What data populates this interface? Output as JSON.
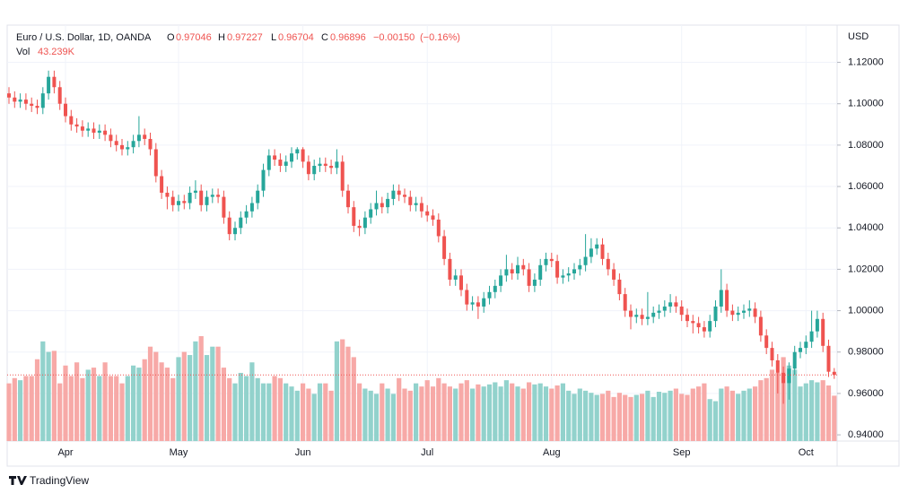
{
  "chart_data": {
    "type": "candlestick",
    "title": "Euro / U.S. Dollar, 1D, OANDA",
    "ohlc": [
      {
        "key": "O",
        "value": 0.97046
      },
      {
        "key": "H",
        "value": 0.97227
      },
      {
        "key": "L",
        "value": 0.96704
      },
      {
        "key": "C",
        "value": 0.96896
      }
    ],
    "change": {
      "value": -0.0015,
      "label": "−0.00150"
    },
    "change_pct": {
      "value": -0.16,
      "label": "(−0.16%)"
    },
    "currency": "USD",
    "brand": "TradingView",
    "up_color": "#26a69a",
    "down_color": "#ef5350",
    "volume_up_color": "#92d2cc",
    "volume_down_color": "#f7a9a7",
    "grid": true,
    "ylim": [
      0.937,
      1.138
    ],
    "yticks": [
      {
        "value": 0.94,
        "label": "0.94000"
      },
      {
        "value": 0.96,
        "label": "0.96000"
      },
      {
        "value": 0.98,
        "label": "0.98000"
      },
      {
        "value": 1.0,
        "label": "1.00000"
      },
      {
        "value": 1.02,
        "label": "1.02000"
      },
      {
        "value": 1.04,
        "label": "1.04000"
      },
      {
        "value": 1.06,
        "label": "1.06000"
      },
      {
        "value": 1.08,
        "label": "1.08000"
      },
      {
        "value": 1.1,
        "label": "1.10000"
      },
      {
        "value": 1.12,
        "label": "1.12000"
      }
    ],
    "categories": [
      null,
      null,
      null,
      null,
      null,
      null,
      null,
      null,
      null,
      null,
      "Apr",
      null,
      null,
      null,
      null,
      null,
      null,
      null,
      null,
      null,
      null,
      null,
      null,
      null,
      null,
      null,
      null,
      null,
      null,
      null,
      "May",
      null,
      null,
      null,
      null,
      null,
      null,
      null,
      null,
      null,
      null,
      null,
      null,
      null,
      null,
      null,
      null,
      null,
      null,
      null,
      null,
      null,
      "Jun",
      null,
      null,
      null,
      null,
      null,
      null,
      null,
      null,
      null,
      null,
      null,
      null,
      null,
      null,
      null,
      null,
      null,
      null,
      null,
      null,
      null,
      "Jul",
      null,
      null,
      null,
      null,
      null,
      null,
      null,
      null,
      null,
      null,
      null,
      null,
      null,
      null,
      null,
      null,
      null,
      null,
      null,
      null,
      null,
      "Aug",
      null,
      null,
      null,
      null,
      null,
      null,
      null,
      null,
      null,
      null,
      null,
      null,
      null,
      null,
      null,
      null,
      null,
      null,
      null,
      null,
      null,
      null,
      "Sep",
      null,
      null,
      null,
      null,
      null,
      null,
      null,
      null,
      null,
      null,
      null,
      null,
      null,
      null,
      null,
      null,
      null,
      null,
      null,
      null,
      null,
      "Oct",
      null,
      null,
      null,
      null,
      null
    ],
    "open": [
      1.105,
      1.103,
      1.101,
      1.102,
      1.1,
      1.099,
      1.098,
      1.105,
      1.113,
      1.108,
      1.1,
      1.094,
      1.09,
      1.089,
      1.087,
      1.088,
      1.086,
      1.087,
      1.085,
      1.082,
      1.08,
      1.078,
      1.079,
      1.082,
      1.085,
      1.083,
      1.078,
      1.065,
      1.057,
      1.055,
      1.051,
      1.053,
      1.052,
      1.057,
      1.058,
      1.051,
      1.055,
      1.056,
      1.055,
      1.045,
      1.037,
      1.04,
      1.045,
      1.048,
      1.052,
      1.058,
      1.068,
      1.075,
      1.073,
      1.07,
      1.072,
      1.076,
      1.078,
      1.072,
      1.066,
      1.07,
      1.071,
      1.07,
      1.069,
      1.072,
      1.058,
      1.05,
      1.041,
      1.04,
      1.045,
      1.049,
      1.052,
      1.05,
      1.054,
      1.058,
      1.056,
      1.055,
      1.051,
      1.052,
      1.048,
      1.046,
      1.044,
      1.036,
      1.025,
      1.015,
      1.017,
      1.01,
      1.003,
      1.004,
      1.002,
      1.006,
      1.009,
      1.012,
      1.017,
      1.02,
      1.018,
      1.022,
      1.02,
      1.012,
      1.015,
      1.022,
      1.025,
      1.024,
      1.016,
      1.017,
      1.018,
      1.02,
      1.022,
      1.026,
      1.03,
      1.032,
      1.025,
      1.02,
      1.015,
      1.008,
      1.0,
      0.997,
      0.998,
      0.996,
      0.997,
      0.999,
      1.0,
      1.002,
      1.004,
      1.002,
      0.998,
      0.995,
      0.994,
      0.992,
      0.99,
      0.995,
      1.002,
      1.01,
      1.0,
      0.998,
      0.999,
      1.0,
      1.001,
      0.997,
      0.988,
      0.982,
      0.976,
      0.97,
      0.965,
      0.972,
      0.98,
      0.982,
      0.985,
      0.99,
      0.996,
      0.983,
      0.97046
    ],
    "high": [
      1.108,
      1.106,
      1.105,
      1.105,
      1.103,
      1.102,
      1.108,
      1.116,
      1.116,
      1.111,
      1.103,
      1.097,
      1.093,
      1.092,
      1.091,
      1.091,
      1.09,
      1.09,
      1.088,
      1.085,
      1.083,
      1.082,
      1.085,
      1.094,
      1.088,
      1.086,
      1.081,
      1.068,
      1.06,
      1.058,
      1.056,
      1.056,
      1.06,
      1.063,
      1.061,
      1.058,
      1.059,
      1.059,
      1.058,
      1.048,
      1.043,
      1.048,
      1.051,
      1.055,
      1.061,
      1.071,
      1.078,
      1.078,
      1.076,
      1.075,
      1.079,
      1.079,
      1.079,
      1.075,
      1.073,
      1.074,
      1.074,
      1.073,
      1.078,
      1.075,
      1.061,
      1.053,
      1.044,
      1.048,
      1.052,
      1.058,
      1.055,
      1.057,
      1.061,
      1.061,
      1.059,
      1.058,
      1.055,
      1.055,
      1.051,
      1.049,
      1.047,
      1.039,
      1.028,
      1.02,
      1.02,
      1.013,
      1.007,
      1.007,
      1.009,
      1.012,
      1.015,
      1.02,
      1.027,
      1.023,
      1.026,
      1.025,
      1.023,
      1.018,
      1.025,
      1.028,
      1.028,
      1.027,
      1.02,
      1.021,
      1.023,
      1.025,
      1.037,
      1.035,
      1.035,
      1.035,
      1.028,
      1.023,
      1.018,
      1.011,
      1.003,
      1.001,
      1.001,
      1.009,
      1.002,
      1.003,
      1.005,
      1.008,
      1.007,
      1.005,
      1.001,
      0.998,
      0.997,
      0.995,
      0.998,
      1.005,
      1.02,
      1.013,
      1.003,
      1.002,
      1.003,
      1.005,
      1.004,
      1.0,
      0.991,
      0.985,
      0.979,
      0.973,
      0.975,
      0.983,
      0.985,
      0.988,
      1.0,
      1.0,
      0.999,
      0.986,
      0.97227
    ],
    "low": [
      1.1,
      1.098,
      1.098,
      1.097,
      1.096,
      1.095,
      1.095,
      1.102,
      1.105,
      1.097,
      1.091,
      1.087,
      1.086,
      1.084,
      1.084,
      1.083,
      1.083,
      1.082,
      1.079,
      1.077,
      1.075,
      1.075,
      1.076,
      1.079,
      1.08,
      1.075,
      1.062,
      1.054,
      1.049,
      1.048,
      1.048,
      1.049,
      1.049,
      1.054,
      1.048,
      1.048,
      1.052,
      1.052,
      1.042,
      1.034,
      1.034,
      1.037,
      1.042,
      1.045,
      1.049,
      1.055,
      1.065,
      1.07,
      1.067,
      1.067,
      1.069,
      1.073,
      1.069,
      1.063,
      1.063,
      1.067,
      1.067,
      1.066,
      1.066,
      1.055,
      1.047,
      1.038,
      1.036,
      1.037,
      1.042,
      1.046,
      1.047,
      1.047,
      1.051,
      1.053,
      1.052,
      1.048,
      1.048,
      1.045,
      1.043,
      1.041,
      1.033,
      1.022,
      1.012,
      1.012,
      1.007,
      1.0,
      1.0,
      0.996,
      0.999,
      1.003,
      1.006,
      1.009,
      1.014,
      1.015,
      1.015,
      1.017,
      1.009,
      1.009,
      1.012,
      1.019,
      1.021,
      1.013,
      1.013,
      1.014,
      1.015,
      1.017,
      1.019,
      1.023,
      1.027,
      1.022,
      1.017,
      1.012,
      1.005,
      0.997,
      0.991,
      0.994,
      0.993,
      0.993,
      0.994,
      0.996,
      0.997,
      0.999,
      0.999,
      0.995,
      0.992,
      0.989,
      0.989,
      0.987,
      0.987,
      0.992,
      0.999,
      0.997,
      0.995,
      0.995,
      0.996,
      0.997,
      0.994,
      0.985,
      0.979,
      0.973,
      0.96,
      0.955,
      0.957,
      0.969,
      0.977,
      0.979,
      0.982,
      0.987,
      0.98,
      0.968,
      0.96704
    ],
    "close": [
      1.103,
      1.101,
      1.102,
      1.1,
      1.099,
      1.098,
      1.105,
      1.113,
      1.108,
      1.1,
      1.094,
      1.09,
      1.089,
      1.087,
      1.088,
      1.086,
      1.087,
      1.085,
      1.082,
      1.08,
      1.078,
      1.079,
      1.082,
      1.085,
      1.083,
      1.078,
      1.065,
      1.057,
      1.055,
      1.051,
      1.053,
      1.052,
      1.057,
      1.058,
      1.051,
      1.055,
      1.056,
      1.055,
      1.045,
      1.037,
      1.04,
      1.045,
      1.048,
      1.052,
      1.058,
      1.068,
      1.075,
      1.073,
      1.07,
      1.072,
      1.076,
      1.078,
      1.072,
      1.066,
      1.07,
      1.071,
      1.07,
      1.069,
      1.072,
      1.058,
      1.05,
      1.041,
      1.04,
      1.045,
      1.049,
      1.052,
      1.05,
      1.054,
      1.058,
      1.056,
      1.055,
      1.051,
      1.052,
      1.048,
      1.046,
      1.044,
      1.036,
      1.025,
      1.015,
      1.017,
      1.01,
      1.003,
      1.004,
      1.002,
      1.006,
      1.009,
      1.012,
      1.017,
      1.02,
      1.018,
      1.022,
      1.02,
      1.012,
      1.015,
      1.022,
      1.025,
      1.024,
      1.016,
      1.017,
      1.018,
      1.02,
      1.022,
      1.026,
      1.03,
      1.032,
      1.025,
      1.02,
      1.015,
      1.008,
      1.0,
      0.997,
      0.998,
      0.996,
      0.997,
      0.999,
      1.0,
      1.002,
      1.004,
      1.002,
      0.998,
      0.995,
      0.994,
      0.992,
      0.99,
      0.995,
      1.002,
      1.01,
      1.0,
      0.998,
      0.999,
      1.0,
      1.001,
      0.997,
      0.988,
      0.982,
      0.976,
      0.97,
      0.965,
      0.972,
      0.98,
      0.982,
      0.985,
      0.99,
      0.996,
      0.983,
      0.9705,
      0.96896
    ],
    "volume": {
      "label": "Vol",
      "ylim": [
        0,
        100
      ],
      "values": [
        55,
        60,
        58,
        62,
        62,
        78,
        95,
        85,
        86,
        55,
        72,
        62,
        75,
        60,
        68,
        70,
        62,
        75,
        62,
        62,
        55,
        62,
        72,
        70,
        78,
        90,
        85,
        75,
        70,
        60,
        80,
        85,
        82,
        95,
        100,
        82,
        90,
        90,
        70,
        60,
        55,
        65,
        62,
        75,
        60,
        55,
        55,
        62,
        60,
        55,
        52,
        48,
        55,
        50,
        45,
        55,
        55,
        48,
        95,
        97,
        90,
        80,
        55,
        50,
        48,
        45,
        55,
        50,
        45,
        60,
        50,
        48,
        55,
        52,
        58,
        52,
        60,
        55,
        52,
        50,
        55,
        58,
        50,
        54,
        52,
        54,
        56,
        52,
        58,
        55,
        52,
        50,
        56,
        54,
        55,
        52,
        50,
        53,
        55,
        48,
        45,
        50,
        48,
        46,
        44,
        45,
        48,
        42,
        46,
        44,
        42,
        44,
        45,
        48,
        42,
        47,
        46,
        48,
        50,
        45,
        44,
        50,
        52,
        55,
        40,
        38,
        50,
        52,
        48,
        45,
        48,
        50,
        52,
        58,
        60,
        68,
        65,
        80,
        72,
        68,
        52,
        55,
        58,
        56,
        58,
        53,
        43.239
      ],
      "last": {
        "value": 43.239,
        "label": "43.239K"
      }
    }
  }
}
